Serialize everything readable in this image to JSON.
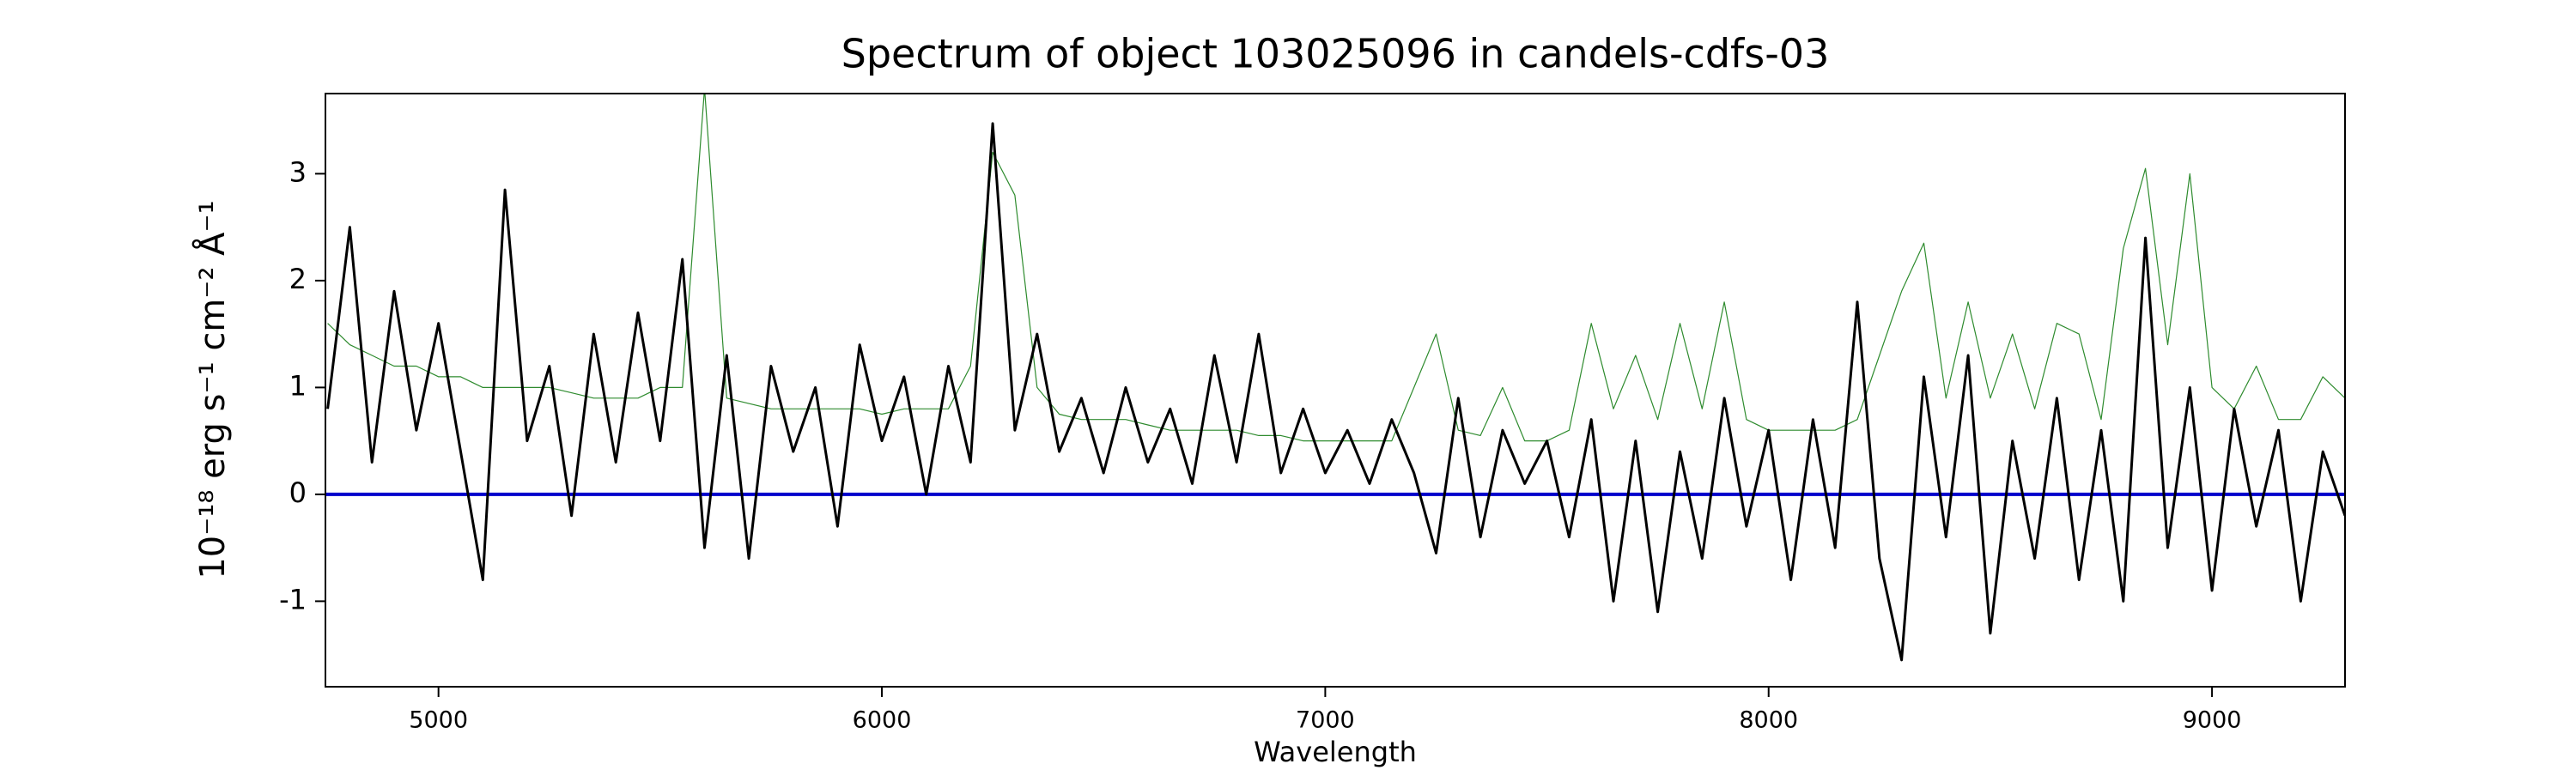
{
  "chart_data": {
    "type": "line",
    "title": "Spectrum of object 103025096 in candels-cdfs-03",
    "xlabel": "Wavelength",
    "ylabel": "10⁻¹⁸ erg s⁻¹ cm⁻² Å⁻¹",
    "x": [
      4750,
      4800,
      4850,
      4900,
      4950,
      5000,
      5050,
      5100,
      5150,
      5200,
      5250,
      5300,
      5350,
      5400,
      5450,
      5500,
      5550,
      5600,
      5650,
      5700,
      5750,
      5800,
      5850,
      5900,
      5950,
      6000,
      6050,
      6100,
      6150,
      6200,
      6250,
      6300,
      6350,
      6400,
      6450,
      6500,
      6550,
      6600,
      6650,
      6700,
      6750,
      6800,
      6850,
      6900,
      6950,
      7000,
      7050,
      7100,
      7150,
      7200,
      7250,
      7300,
      7350,
      7400,
      7450,
      7500,
      7550,
      7600,
      7650,
      7700,
      7750,
      7800,
      7850,
      7900,
      7950,
      8000,
      8050,
      8100,
      8150,
      8200,
      8250,
      8300,
      8350,
      8400,
      8450,
      8500,
      8550,
      8600,
      8650,
      8700,
      8750,
      8800,
      8850,
      8900,
      8950,
      9000,
      9050,
      9100,
      9150,
      9200,
      9250,
      9300
    ],
    "series": [
      {
        "color": "#2e8b2e",
        "width": 1.2,
        "values": [
          1.6,
          1.4,
          1.3,
          1.2,
          1.2,
          1.1,
          1.1,
          1.0,
          1.0,
          1.0,
          1.0,
          0.95,
          0.9,
          0.9,
          0.9,
          1.0,
          1.0,
          3.8,
          0.9,
          0.85,
          0.8,
          0.8,
          0.8,
          0.8,
          0.8,
          0.75,
          0.8,
          0.8,
          0.8,
          1.2,
          3.2,
          2.8,
          1.0,
          0.75,
          0.7,
          0.7,
          0.7,
          0.65,
          0.6,
          0.6,
          0.6,
          0.6,
          0.55,
          0.55,
          0.5,
          0.5,
          0.5,
          0.5,
          0.5,
          1.0,
          1.5,
          0.6,
          0.55,
          1.0,
          0.5,
          0.5,
          0.6,
          1.6,
          0.8,
          1.3,
          0.7,
          1.6,
          0.8,
          1.8,
          0.7,
          0.6,
          0.6,
          0.6,
          0.6,
          0.7,
          1.3,
          1.9,
          2.35,
          0.9,
          1.8,
          0.9,
          1.5,
          0.8,
          1.6,
          1.5,
          0.7,
          2.3,
          3.05,
          1.4,
          3.0,
          1.0,
          0.8,
          1.2,
          0.7,
          0.7,
          1.1,
          0.9
        ]
      },
      {
        "color": "#0000cc",
        "width": 4,
        "x": [
          4745,
          9300
        ],
        "values": [
          0,
          0
        ]
      },
      {
        "color": "#000000",
        "width": 3,
        "values": [
          0.8,
          2.5,
          0.3,
          1.9,
          0.6,
          1.6,
          0.4,
          -0.8,
          2.85,
          0.5,
          1.2,
          -0.2,
          1.5,
          0.3,
          1.7,
          0.5,
          2.2,
          -0.5,
          1.3,
          -0.6,
          1.2,
          0.4,
          1.0,
          -0.3,
          1.4,
          0.5,
          1.1,
          0.0,
          1.2,
          0.3,
          3.47,
          0.6,
          1.5,
          0.4,
          0.9,
          0.2,
          1.0,
          0.3,
          0.8,
          0.1,
          1.3,
          0.3,
          1.5,
          0.2,
          0.8,
          0.2,
          0.6,
          0.1,
          0.7,
          0.2,
          -0.55,
          0.9,
          -0.4,
          0.6,
          0.1,
          0.5,
          -0.4,
          0.7,
          -1.0,
          0.5,
          -1.1,
          0.4,
          -0.6,
          0.9,
          -0.3,
          0.6,
          -0.8,
          0.7,
          -0.5,
          1.8,
          -0.6,
          -1.55,
          1.1,
          -0.4,
          1.3,
          -1.3,
          0.5,
          -0.6,
          0.9,
          -0.8,
          0.6,
          -1.0,
          2.4,
          -0.5,
          1.0,
          -0.9,
          0.8,
          -0.3,
          0.6,
          -1.0,
          0.4,
          -0.2
        ]
      }
    ],
    "xlim": [
      4745,
      9300
    ],
    "xticks": [
      5000,
      6000,
      7000,
      8000,
      9000
    ],
    "ylim": [
      -1.8,
      3.75
    ],
    "yticks": [
      -1,
      0,
      1,
      2,
      3
    ],
    "grid": false
  }
}
